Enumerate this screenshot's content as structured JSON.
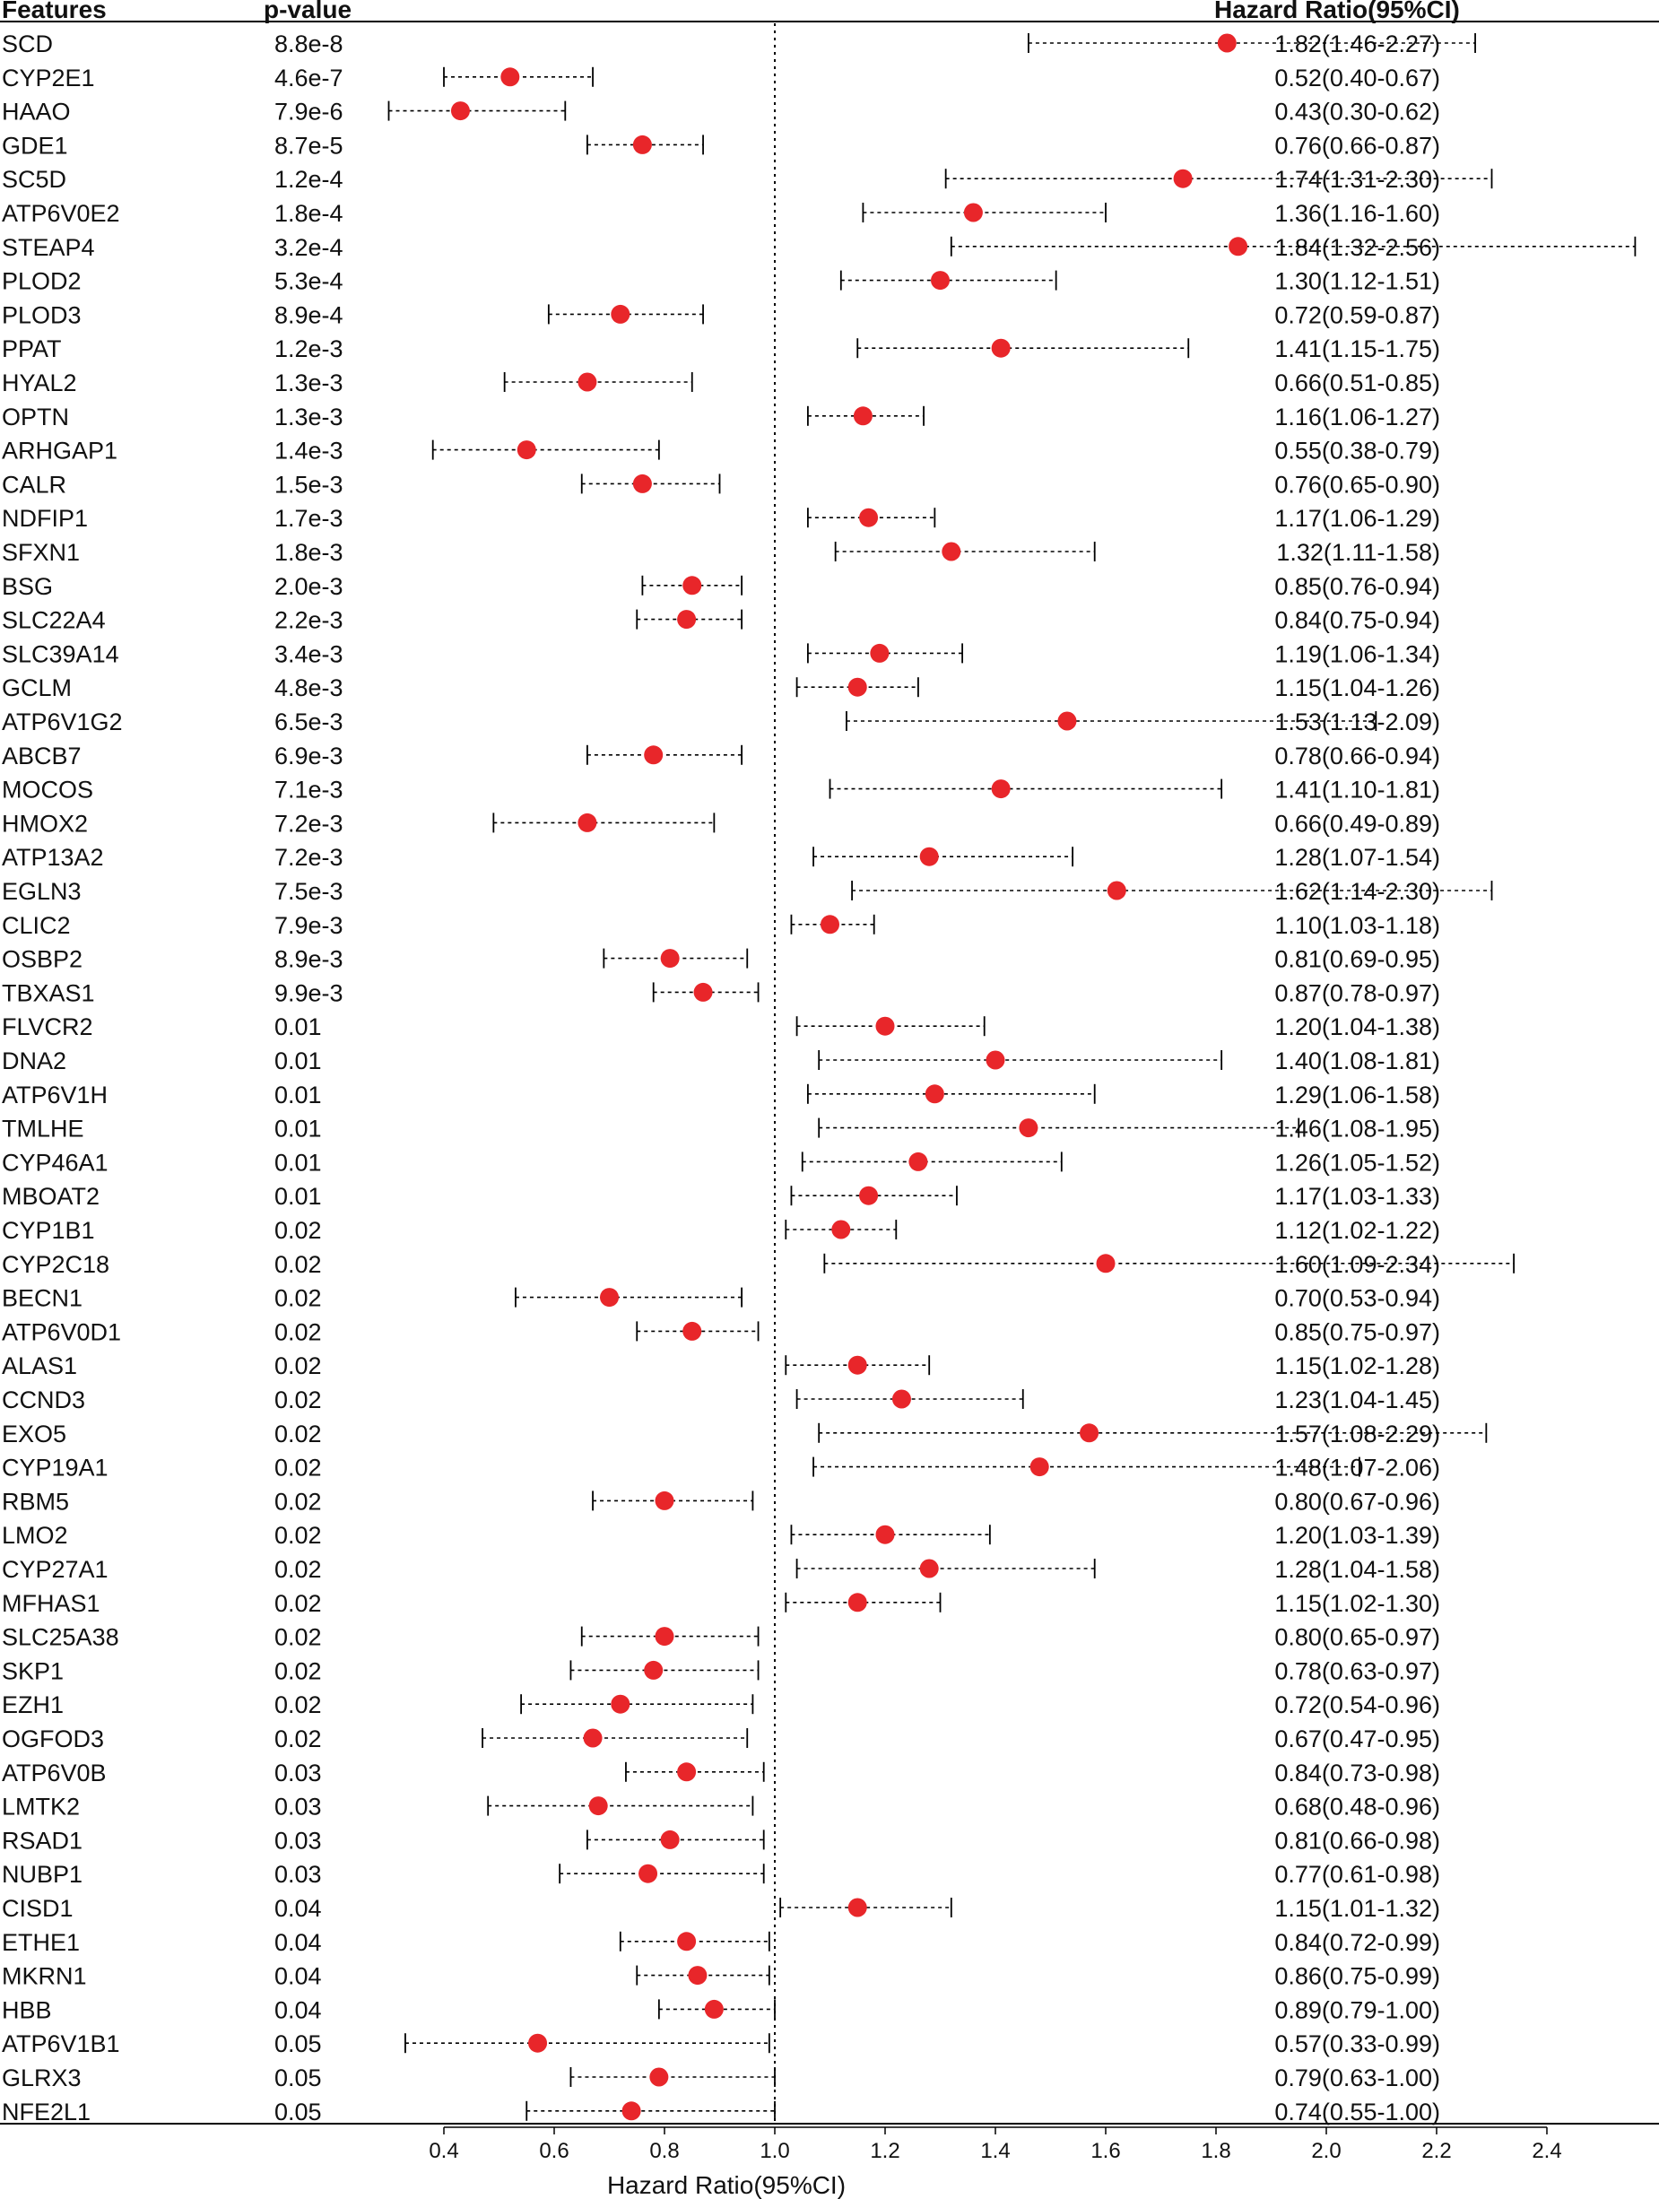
{
  "headers": {
    "features": "Features",
    "pvalue": "p-value",
    "hr": "Hazard Ratio(95%CI)"
  },
  "chart_data": {
    "type": "forest",
    "xlabel": "Hazard Ratio(95%CI)",
    "xlim": [
      0.2,
      2.5
    ],
    "xticks": [
      0.4,
      0.6,
      0.8,
      1.0,
      1.2,
      1.4,
      1.6,
      1.8,
      2.0,
      2.2,
      2.4
    ],
    "tick_labels": [
      "0.4",
      "0.6",
      "0.8",
      "1.0",
      "1.2",
      "1.4",
      "1.6",
      "1.8",
      "2.0",
      "2.2",
      "2.4"
    ],
    "reference_line": 1.0,
    "point_color": "#e8262a",
    "rows": [
      {
        "feature": "SCD",
        "pvalue": "8.8e-8",
        "hr": 1.82,
        "lower": 1.46,
        "upper": 2.27,
        "label": "1.82(1.46-2.27)"
      },
      {
        "feature": "CYP2E1",
        "pvalue": "4.6e-7",
        "hr": 0.52,
        "lower": 0.4,
        "upper": 0.67,
        "label": "0.52(0.40-0.67)"
      },
      {
        "feature": "HAAO",
        "pvalue": "7.9e-6",
        "hr": 0.43,
        "lower": 0.3,
        "upper": 0.62,
        "label": "0.43(0.30-0.62)"
      },
      {
        "feature": "GDE1",
        "pvalue": "8.7e-5",
        "hr": 0.76,
        "lower": 0.66,
        "upper": 0.87,
        "label": "0.76(0.66-0.87)"
      },
      {
        "feature": "SC5D",
        "pvalue": "1.2e-4",
        "hr": 1.74,
        "lower": 1.31,
        "upper": 2.3,
        "label": "1.74(1.31-2.30)"
      },
      {
        "feature": "ATP6V0E2",
        "pvalue": "1.8e-4",
        "hr": 1.36,
        "lower": 1.16,
        "upper": 1.6,
        "label": "1.36(1.16-1.60)"
      },
      {
        "feature": "STEAP4",
        "pvalue": "3.2e-4",
        "hr": 1.84,
        "lower": 1.32,
        "upper": 2.56,
        "label": "1.84(1.32-2.56)"
      },
      {
        "feature": "PLOD2",
        "pvalue": "5.3e-4",
        "hr": 1.3,
        "lower": 1.12,
        "upper": 1.51,
        "label": "1.30(1.12-1.51)"
      },
      {
        "feature": "PLOD3",
        "pvalue": "8.9e-4",
        "hr": 0.72,
        "lower": 0.59,
        "upper": 0.87,
        "label": "0.72(0.59-0.87)"
      },
      {
        "feature": "PPAT",
        "pvalue": "1.2e-3",
        "hr": 1.41,
        "lower": 1.15,
        "upper": 1.75,
        "label": "1.41(1.15-1.75)"
      },
      {
        "feature": "HYAL2",
        "pvalue": "1.3e-3",
        "hr": 0.66,
        "lower": 0.51,
        "upper": 0.85,
        "label": "0.66(0.51-0.85)"
      },
      {
        "feature": "OPTN",
        "pvalue": "1.3e-3",
        "hr": 1.16,
        "lower": 1.06,
        "upper": 1.27,
        "label": "1.16(1.06-1.27)"
      },
      {
        "feature": "ARHGAP1",
        "pvalue": "1.4e-3",
        "hr": 0.55,
        "lower": 0.38,
        "upper": 0.79,
        "label": "0.55(0.38-0.79)"
      },
      {
        "feature": "CALR",
        "pvalue": "1.5e-3",
        "hr": 0.76,
        "lower": 0.65,
        "upper": 0.9,
        "label": "0.76(0.65-0.90)"
      },
      {
        "feature": "NDFIP1",
        "pvalue": "1.7e-3",
        "hr": 1.17,
        "lower": 1.06,
        "upper": 1.29,
        "label": "1.17(1.06-1.29)"
      },
      {
        "feature": "SFXN1",
        "pvalue": "1.8e-3",
        "hr": 1.32,
        "lower": 1.11,
        "upper": 1.58,
        "label": "1.32(1.11-1.58)"
      },
      {
        "feature": "BSG",
        "pvalue": "2.0e-3",
        "hr": 0.85,
        "lower": 0.76,
        "upper": 0.94,
        "label": "0.85(0.76-0.94)"
      },
      {
        "feature": "SLC22A4",
        "pvalue": "2.2e-3",
        "hr": 0.84,
        "lower": 0.75,
        "upper": 0.94,
        "label": "0.84(0.75-0.94)"
      },
      {
        "feature": "SLC39A14",
        "pvalue": "3.4e-3",
        "hr": 1.19,
        "lower": 1.06,
        "upper": 1.34,
        "label": "1.19(1.06-1.34)"
      },
      {
        "feature": "GCLM",
        "pvalue": "4.8e-3",
        "hr": 1.15,
        "lower": 1.04,
        "upper": 1.26,
        "label": "1.15(1.04-1.26)"
      },
      {
        "feature": "ATP6V1G2",
        "pvalue": "6.5e-3",
        "hr": 1.53,
        "lower": 1.13,
        "upper": 2.09,
        "label": "1.53(1.13-2.09)"
      },
      {
        "feature": "ABCB7",
        "pvalue": "6.9e-3",
        "hr": 0.78,
        "lower": 0.66,
        "upper": 0.94,
        "label": "0.78(0.66-0.94)"
      },
      {
        "feature": "MOCOS",
        "pvalue": "7.1e-3",
        "hr": 1.41,
        "lower": 1.1,
        "upper": 1.81,
        "label": "1.41(1.10-1.81)"
      },
      {
        "feature": "HMOX2",
        "pvalue": "7.2e-3",
        "hr": 0.66,
        "lower": 0.49,
        "upper": 0.89,
        "label": "0.66(0.49-0.89)"
      },
      {
        "feature": "ATP13A2",
        "pvalue": "7.2e-3",
        "hr": 1.28,
        "lower": 1.07,
        "upper": 1.54,
        "label": "1.28(1.07-1.54)"
      },
      {
        "feature": "EGLN3",
        "pvalue": "7.5e-3",
        "hr": 1.62,
        "lower": 1.14,
        "upper": 2.3,
        "label": "1.62(1.14-2.30)"
      },
      {
        "feature": "CLIC2",
        "pvalue": "7.9e-3",
        "hr": 1.1,
        "lower": 1.03,
        "upper": 1.18,
        "label": "1.10(1.03-1.18)"
      },
      {
        "feature": "OSBP2",
        "pvalue": "8.9e-3",
        "hr": 0.81,
        "lower": 0.69,
        "upper": 0.95,
        "label": "0.81(0.69-0.95)"
      },
      {
        "feature": "TBXAS1",
        "pvalue": "9.9e-3",
        "hr": 0.87,
        "lower": 0.78,
        "upper": 0.97,
        "label": "0.87(0.78-0.97)"
      },
      {
        "feature": "FLVCR2",
        "pvalue": "0.01",
        "hr": 1.2,
        "lower": 1.04,
        "upper": 1.38,
        "label": "1.20(1.04-1.38)"
      },
      {
        "feature": "DNA2",
        "pvalue": "0.01",
        "hr": 1.4,
        "lower": 1.08,
        "upper": 1.81,
        "label": "1.40(1.08-1.81)"
      },
      {
        "feature": "ATP6V1H",
        "pvalue": "0.01",
        "hr": 1.29,
        "lower": 1.06,
        "upper": 1.58,
        "label": "1.29(1.06-1.58)"
      },
      {
        "feature": "TMLHE",
        "pvalue": "0.01",
        "hr": 1.46,
        "lower": 1.08,
        "upper": 1.95,
        "label": "1.46(1.08-1.95)"
      },
      {
        "feature": "CYP46A1",
        "pvalue": "0.01",
        "hr": 1.26,
        "lower": 1.05,
        "upper": 1.52,
        "label": "1.26(1.05-1.52)"
      },
      {
        "feature": "MBOAT2",
        "pvalue": "0.01",
        "hr": 1.17,
        "lower": 1.03,
        "upper": 1.33,
        "label": "1.17(1.03-1.33)"
      },
      {
        "feature": "CYP1B1",
        "pvalue": "0.02",
        "hr": 1.12,
        "lower": 1.02,
        "upper": 1.22,
        "label": "1.12(1.02-1.22)"
      },
      {
        "feature": "CYP2C18",
        "pvalue": "0.02",
        "hr": 1.6,
        "lower": 1.09,
        "upper": 2.34,
        "label": "1.60(1.09-2.34)"
      },
      {
        "feature": "BECN1",
        "pvalue": "0.02",
        "hr": 0.7,
        "lower": 0.53,
        "upper": 0.94,
        "label": "0.70(0.53-0.94)"
      },
      {
        "feature": "ATP6V0D1",
        "pvalue": "0.02",
        "hr": 0.85,
        "lower": 0.75,
        "upper": 0.97,
        "label": "0.85(0.75-0.97)"
      },
      {
        "feature": "ALAS1",
        "pvalue": "0.02",
        "hr": 1.15,
        "lower": 1.02,
        "upper": 1.28,
        "label": "1.15(1.02-1.28)"
      },
      {
        "feature": "CCND3",
        "pvalue": "0.02",
        "hr": 1.23,
        "lower": 1.04,
        "upper": 1.45,
        "label": "1.23(1.04-1.45)"
      },
      {
        "feature": "EXO5",
        "pvalue": "0.02",
        "hr": 1.57,
        "lower": 1.08,
        "upper": 2.29,
        "label": "1.57(1.08-2.29)"
      },
      {
        "feature": "CYP19A1",
        "pvalue": "0.02",
        "hr": 1.48,
        "lower": 1.07,
        "upper": 2.06,
        "label": "1.48(1.07-2.06)"
      },
      {
        "feature": "RBM5",
        "pvalue": "0.02",
        "hr": 0.8,
        "lower": 0.67,
        "upper": 0.96,
        "label": "0.80(0.67-0.96)"
      },
      {
        "feature": "LMO2",
        "pvalue": "0.02",
        "hr": 1.2,
        "lower": 1.03,
        "upper": 1.39,
        "label": "1.20(1.03-1.39)"
      },
      {
        "feature": "CYP27A1",
        "pvalue": "0.02",
        "hr": 1.28,
        "lower": 1.04,
        "upper": 1.58,
        "label": "1.28(1.04-1.58)"
      },
      {
        "feature": "MFHAS1",
        "pvalue": "0.02",
        "hr": 1.15,
        "lower": 1.02,
        "upper": 1.3,
        "label": "1.15(1.02-1.30)"
      },
      {
        "feature": "SLC25A38",
        "pvalue": "0.02",
        "hr": 0.8,
        "lower": 0.65,
        "upper": 0.97,
        "label": "0.80(0.65-0.97)"
      },
      {
        "feature": "SKP1",
        "pvalue": "0.02",
        "hr": 0.78,
        "lower": 0.63,
        "upper": 0.97,
        "label": "0.78(0.63-0.97)"
      },
      {
        "feature": "EZH1",
        "pvalue": "0.02",
        "hr": 0.72,
        "lower": 0.54,
        "upper": 0.96,
        "label": "0.72(0.54-0.96)"
      },
      {
        "feature": "OGFOD3",
        "pvalue": "0.02",
        "hr": 0.67,
        "lower": 0.47,
        "upper": 0.95,
        "label": "0.67(0.47-0.95)"
      },
      {
        "feature": "ATP6V0B",
        "pvalue": "0.03",
        "hr": 0.84,
        "lower": 0.73,
        "upper": 0.98,
        "label": "0.84(0.73-0.98)"
      },
      {
        "feature": "LMTK2",
        "pvalue": "0.03",
        "hr": 0.68,
        "lower": 0.48,
        "upper": 0.96,
        "label": "0.68(0.48-0.96)"
      },
      {
        "feature": "RSAD1",
        "pvalue": "0.03",
        "hr": 0.81,
        "lower": 0.66,
        "upper": 0.98,
        "label": "0.81(0.66-0.98)"
      },
      {
        "feature": "NUBP1",
        "pvalue": "0.03",
        "hr": 0.77,
        "lower": 0.61,
        "upper": 0.98,
        "label": "0.77(0.61-0.98)"
      },
      {
        "feature": "CISD1",
        "pvalue": "0.04",
        "hr": 1.15,
        "lower": 1.01,
        "upper": 1.32,
        "label": "1.15(1.01-1.32)"
      },
      {
        "feature": "ETHE1",
        "pvalue": "0.04",
        "hr": 0.84,
        "lower": 0.72,
        "upper": 0.99,
        "label": "0.84(0.72-0.99)"
      },
      {
        "feature": "MKRN1",
        "pvalue": "0.04",
        "hr": 0.86,
        "lower": 0.75,
        "upper": 0.99,
        "label": "0.86(0.75-0.99)"
      },
      {
        "feature": "HBB",
        "pvalue": "0.04",
        "hr": 0.89,
        "lower": 0.79,
        "upper": 1.0,
        "label": "0.89(0.79-1.00)"
      },
      {
        "feature": "ATP6V1B1",
        "pvalue": "0.05",
        "hr": 0.57,
        "lower": 0.33,
        "upper": 0.99,
        "label": "0.57(0.33-0.99)"
      },
      {
        "feature": "GLRX3",
        "pvalue": "0.05",
        "hr": 0.79,
        "lower": 0.63,
        "upper": 1.0,
        "label": "0.79(0.63-1.00)"
      },
      {
        "feature": "NFE2L1",
        "pvalue": "0.05",
        "hr": 0.74,
        "lower": 0.55,
        "upper": 1.0,
        "label": "0.74(0.55-1.00)"
      }
    ]
  }
}
